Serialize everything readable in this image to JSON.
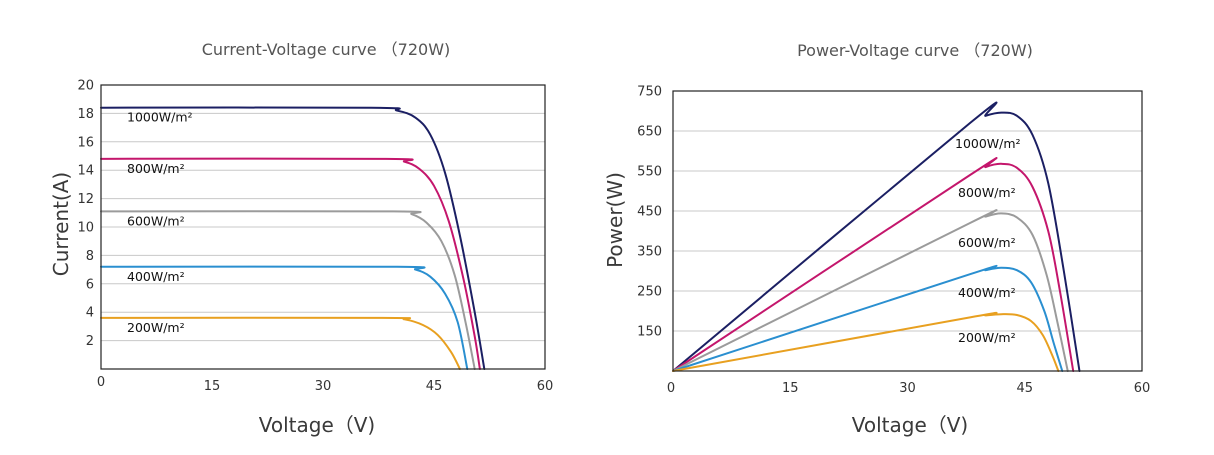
{
  "chart_data": [
    {
      "type": "line",
      "title": "Current-Voltage curve （720W)",
      "xlabel": "Voltage（V)",
      "ylabel": "Current(A)",
      "xlim": [
        0,
        60
      ],
      "ylim": [
        0,
        20
      ],
      "x_ticks": [
        "0",
        "15",
        "30",
        "45",
        "60"
      ],
      "y_ticks": [
        "2",
        "4",
        "6",
        "8",
        "10",
        "12",
        "14",
        "16",
        "18",
        "20"
      ],
      "grid": true,
      "series": [
        {
          "name": "1000W/m²",
          "color": "#1b1f63",
          "points": [
            [
              0,
              18.4
            ],
            [
              36.5,
              18.4
            ],
            [
              40,
              18.2
            ],
            [
              42.5,
              17.7
            ],
            [
              44.5,
              16.5
            ],
            [
              46.5,
              13.8
            ],
            [
              48.5,
              9.4
            ],
            [
              50.5,
              4.0
            ],
            [
              51.8,
              0
            ]
          ]
        },
        {
          "name": "800W/m²",
          "color": "#c4166c",
          "points": [
            [
              0,
              14.8
            ],
            [
              38.5,
              14.8
            ],
            [
              41,
              14.6
            ],
            [
              43,
              14.1
            ],
            [
              45,
              12.9
            ],
            [
              47,
              10.4
            ],
            [
              49,
              6.3
            ],
            [
              50.5,
              2.3
            ],
            [
              51.2,
              0
            ]
          ]
        },
        {
          "name": "600W/m²",
          "color": "#9b9b9b",
          "points": [
            [
              0,
              11.1
            ],
            [
              39.5,
              11.1
            ],
            [
              42,
              10.9
            ],
            [
              44,
              10.3
            ],
            [
              46,
              9.0
            ],
            [
              47.8,
              6.6
            ],
            [
              49.3,
              3.2
            ],
            [
              50.5,
              0
            ]
          ]
        },
        {
          "name": "400W/m²",
          "color": "#2a8fd0",
          "points": [
            [
              0,
              7.2
            ],
            [
              40,
              7.2
            ],
            [
              42.5,
              7.0
            ],
            [
              44.5,
              6.5
            ],
            [
              46.5,
              5.3
            ],
            [
              48.2,
              3.3
            ],
            [
              49.5,
              0
            ]
          ]
        },
        {
          "name": "200W/m²",
          "color": "#e8a020",
          "points": [
            [
              0,
              3.6
            ],
            [
              38,
              3.6
            ],
            [
              41,
              3.5
            ],
            [
              43.5,
              3.1
            ],
            [
              45.5,
              2.4
            ],
            [
              47.3,
              1.2
            ],
            [
              48.5,
              0
            ]
          ]
        }
      ]
    },
    {
      "type": "line",
      "title": "Power-Voltage curve （720W)",
      "xlabel": "Voltage（V)",
      "ylabel": "Power(W)",
      "xlim": [
        0,
        60
      ],
      "ylim": [
        50,
        750
      ],
      "x_ticks": [
        "0",
        "15",
        "30",
        "45",
        "60"
      ],
      "y_ticks": [
        "150",
        "250",
        "350",
        "450",
        "550",
        "650",
        "750"
      ],
      "grid": true,
      "series": [
        {
          "name": "1000W/m²",
          "color": "#1b1f63",
          "points": [
            [
              0,
              50
            ],
            [
              38,
              670
            ],
            [
              40,
              688
            ],
            [
              42,
              696
            ],
            [
              44,
              688
            ],
            [
              46,
              640
            ],
            [
              48,
              520
            ],
            [
              50,
              300
            ],
            [
              52,
              50
            ]
          ]
        },
        {
          "name": "800W/m²",
          "color": "#c4166c",
          "points": [
            [
              0,
              50
            ],
            [
              38,
              540
            ],
            [
              40,
              560
            ],
            [
              42,
              568
            ],
            [
              44,
              558
            ],
            [
              46,
              510
            ],
            [
              48,
              400
            ],
            [
              49.5,
              250
            ],
            [
              51.2,
              50
            ]
          ]
        },
        {
          "name": "600W/m²",
          "color": "#9b9b9b",
          "points": [
            [
              0,
              50
            ],
            [
              38,
              420
            ],
            [
              40,
              436
            ],
            [
              42,
              444
            ],
            [
              44,
              434
            ],
            [
              46,
              390
            ],
            [
              47.8,
              290
            ],
            [
              49.2,
              170
            ],
            [
              50.5,
              50
            ]
          ]
        },
        {
          "name": "400W/m²",
          "color": "#2a8fd0",
          "points": [
            [
              0,
              50
            ],
            [
              38,
              292
            ],
            [
              40,
              302
            ],
            [
              42,
              308
            ],
            [
              44,
              302
            ],
            [
              45.8,
              272
            ],
            [
              47.5,
              200
            ],
            [
              48.7,
              120
            ],
            [
              49.8,
              50
            ]
          ]
        },
        {
          "name": "200W/m²",
          "color": "#e8a020",
          "points": [
            [
              0,
              50
            ],
            [
              38,
              184
            ],
            [
              40,
              189
            ],
            [
              42,
              192
            ],
            [
              44,
              190
            ],
            [
              45.8,
              175
            ],
            [
              47.3,
              140
            ],
            [
              48.5,
              90
            ],
            [
              49.3,
              50
            ]
          ]
        }
      ]
    }
  ]
}
